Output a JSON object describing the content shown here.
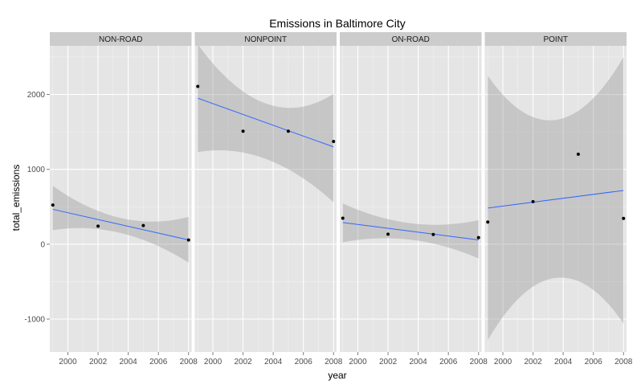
{
  "chart_data": {
    "type": "scatter",
    "title": "Emissions in Baltimore City",
    "xlabel": "year",
    "ylabel": "total_emissions",
    "xlim": [
      1998.8,
      2008.2
    ],
    "ylim": [
      -1440,
      2650
    ],
    "x_ticks": [
      2000,
      2002,
      2004,
      2006,
      2008
    ],
    "x_tick_labels": [
      "2000",
      "2002",
      "2004",
      "2006",
      "2008"
    ],
    "y_ticks": [
      -1000,
      0,
      1000,
      2000
    ],
    "y_tick_labels": [
      "-1000",
      "0",
      "1000",
      "2000"
    ],
    "grid": true,
    "trend": "linear fit with shaded confidence band",
    "colors": {
      "panel_bg": "#e5e5e5",
      "strip_bg": "#cccccc",
      "grid_major": "#ffffff",
      "grid_minor": "#f2f2f2",
      "band": "#999999",
      "fit_line": "#3366ff",
      "point": "#000000"
    },
    "facets": [
      {
        "name": "NON-ROAD",
        "x": [
          1999,
          2002,
          2005,
          2008
        ],
        "y": [
          522.9,
          241.0,
          248.9,
          55.8
        ],
        "fit": {
          "x": [
            1999,
            2008
          ],
          "y": [
            466,
            57
          ]
        },
        "band": {
          "x": [
            1999,
            2003.5,
            2008
          ],
          "lower": [
            188,
            150,
            -245
          ],
          "upper": [
            780,
            350,
            365
          ]
        }
      },
      {
        "name": "NONPOINT",
        "x": [
          1999,
          2002,
          2005,
          2008
        ],
        "y": [
          2107.6,
          1509.5,
          1509.5,
          1373.2
        ],
        "fit": {
          "x": [
            1999,
            2008
          ],
          "y": [
            1950,
            1300
          ]
        },
        "band": {
          "x": [
            1999,
            2003.5,
            2008
          ],
          "lower": [
            1230,
            1140,
            560
          ],
          "upper": [
            2670,
            1880,
            2010
          ]
        }
      },
      {
        "name": "ON-ROAD",
        "x": [
          1999,
          2002,
          2005,
          2008
        ],
        "y": [
          346.8,
          134.3,
          130.4,
          88.3
        ],
        "fit": {
          "x": [
            1999,
            2008
          ],
          "y": [
            290,
            57
          ]
        },
        "band": {
          "x": [
            1999,
            2003.5,
            2008
          ],
          "lower": [
            25,
            60,
            -190
          ],
          "upper": [
            545,
            280,
            320
          ]
        }
      },
      {
        "name": "POINT",
        "x": [
          1999,
          2002,
          2005,
          2008
        ],
        "y": [
          296.8,
          569.3,
          1202.5,
          344.98
        ],
        "fit": {
          "x": [
            1999,
            2008
          ],
          "y": [
            483,
            718
          ]
        },
        "band": {
          "x": [
            1999,
            2003.5,
            2008
          ],
          "lower": [
            -1280,
            -450,
            -1060
          ],
          "upper": [
            2250,
            1660,
            2500
          ]
        }
      }
    ]
  }
}
